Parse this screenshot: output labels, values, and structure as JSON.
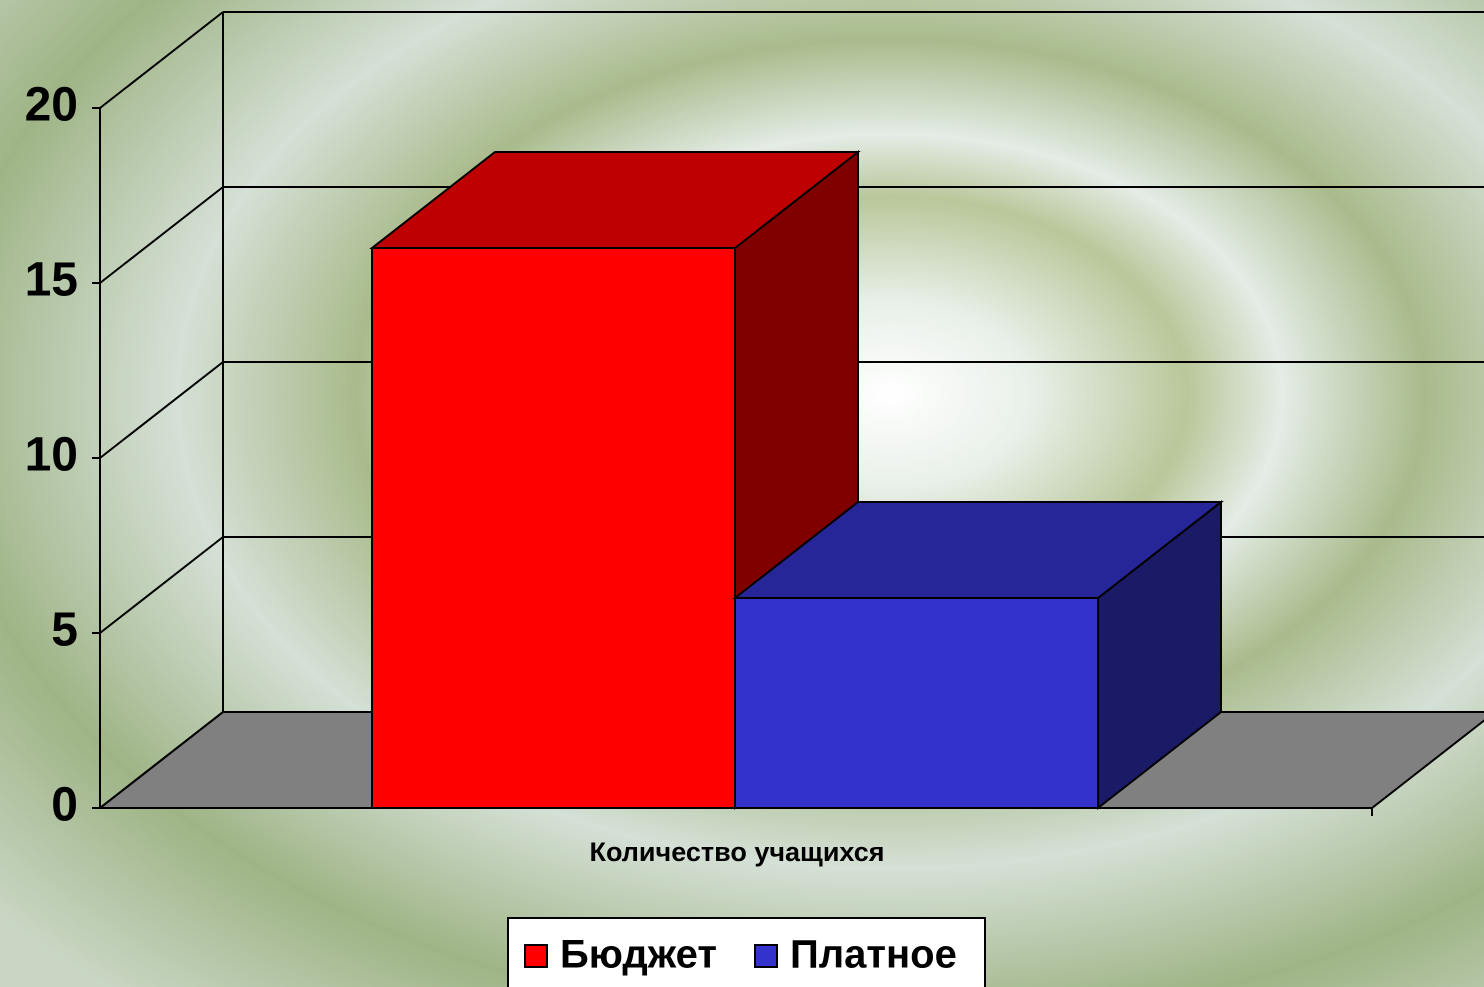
{
  "chart_data": {
    "type": "bar3d",
    "categories": [
      "Количество учащихся"
    ],
    "series": [
      {
        "name": "Бюджет",
        "color": "#ff0000",
        "values": [
          16
        ]
      },
      {
        "name": "Платное",
        "color": "#3333cc",
        "values": [
          6
        ]
      }
    ],
    "ylim": [
      0,
      20
    ],
    "yticks": [
      0,
      5,
      10,
      15,
      20
    ],
    "grid": true,
    "legend": "bottom"
  }
}
